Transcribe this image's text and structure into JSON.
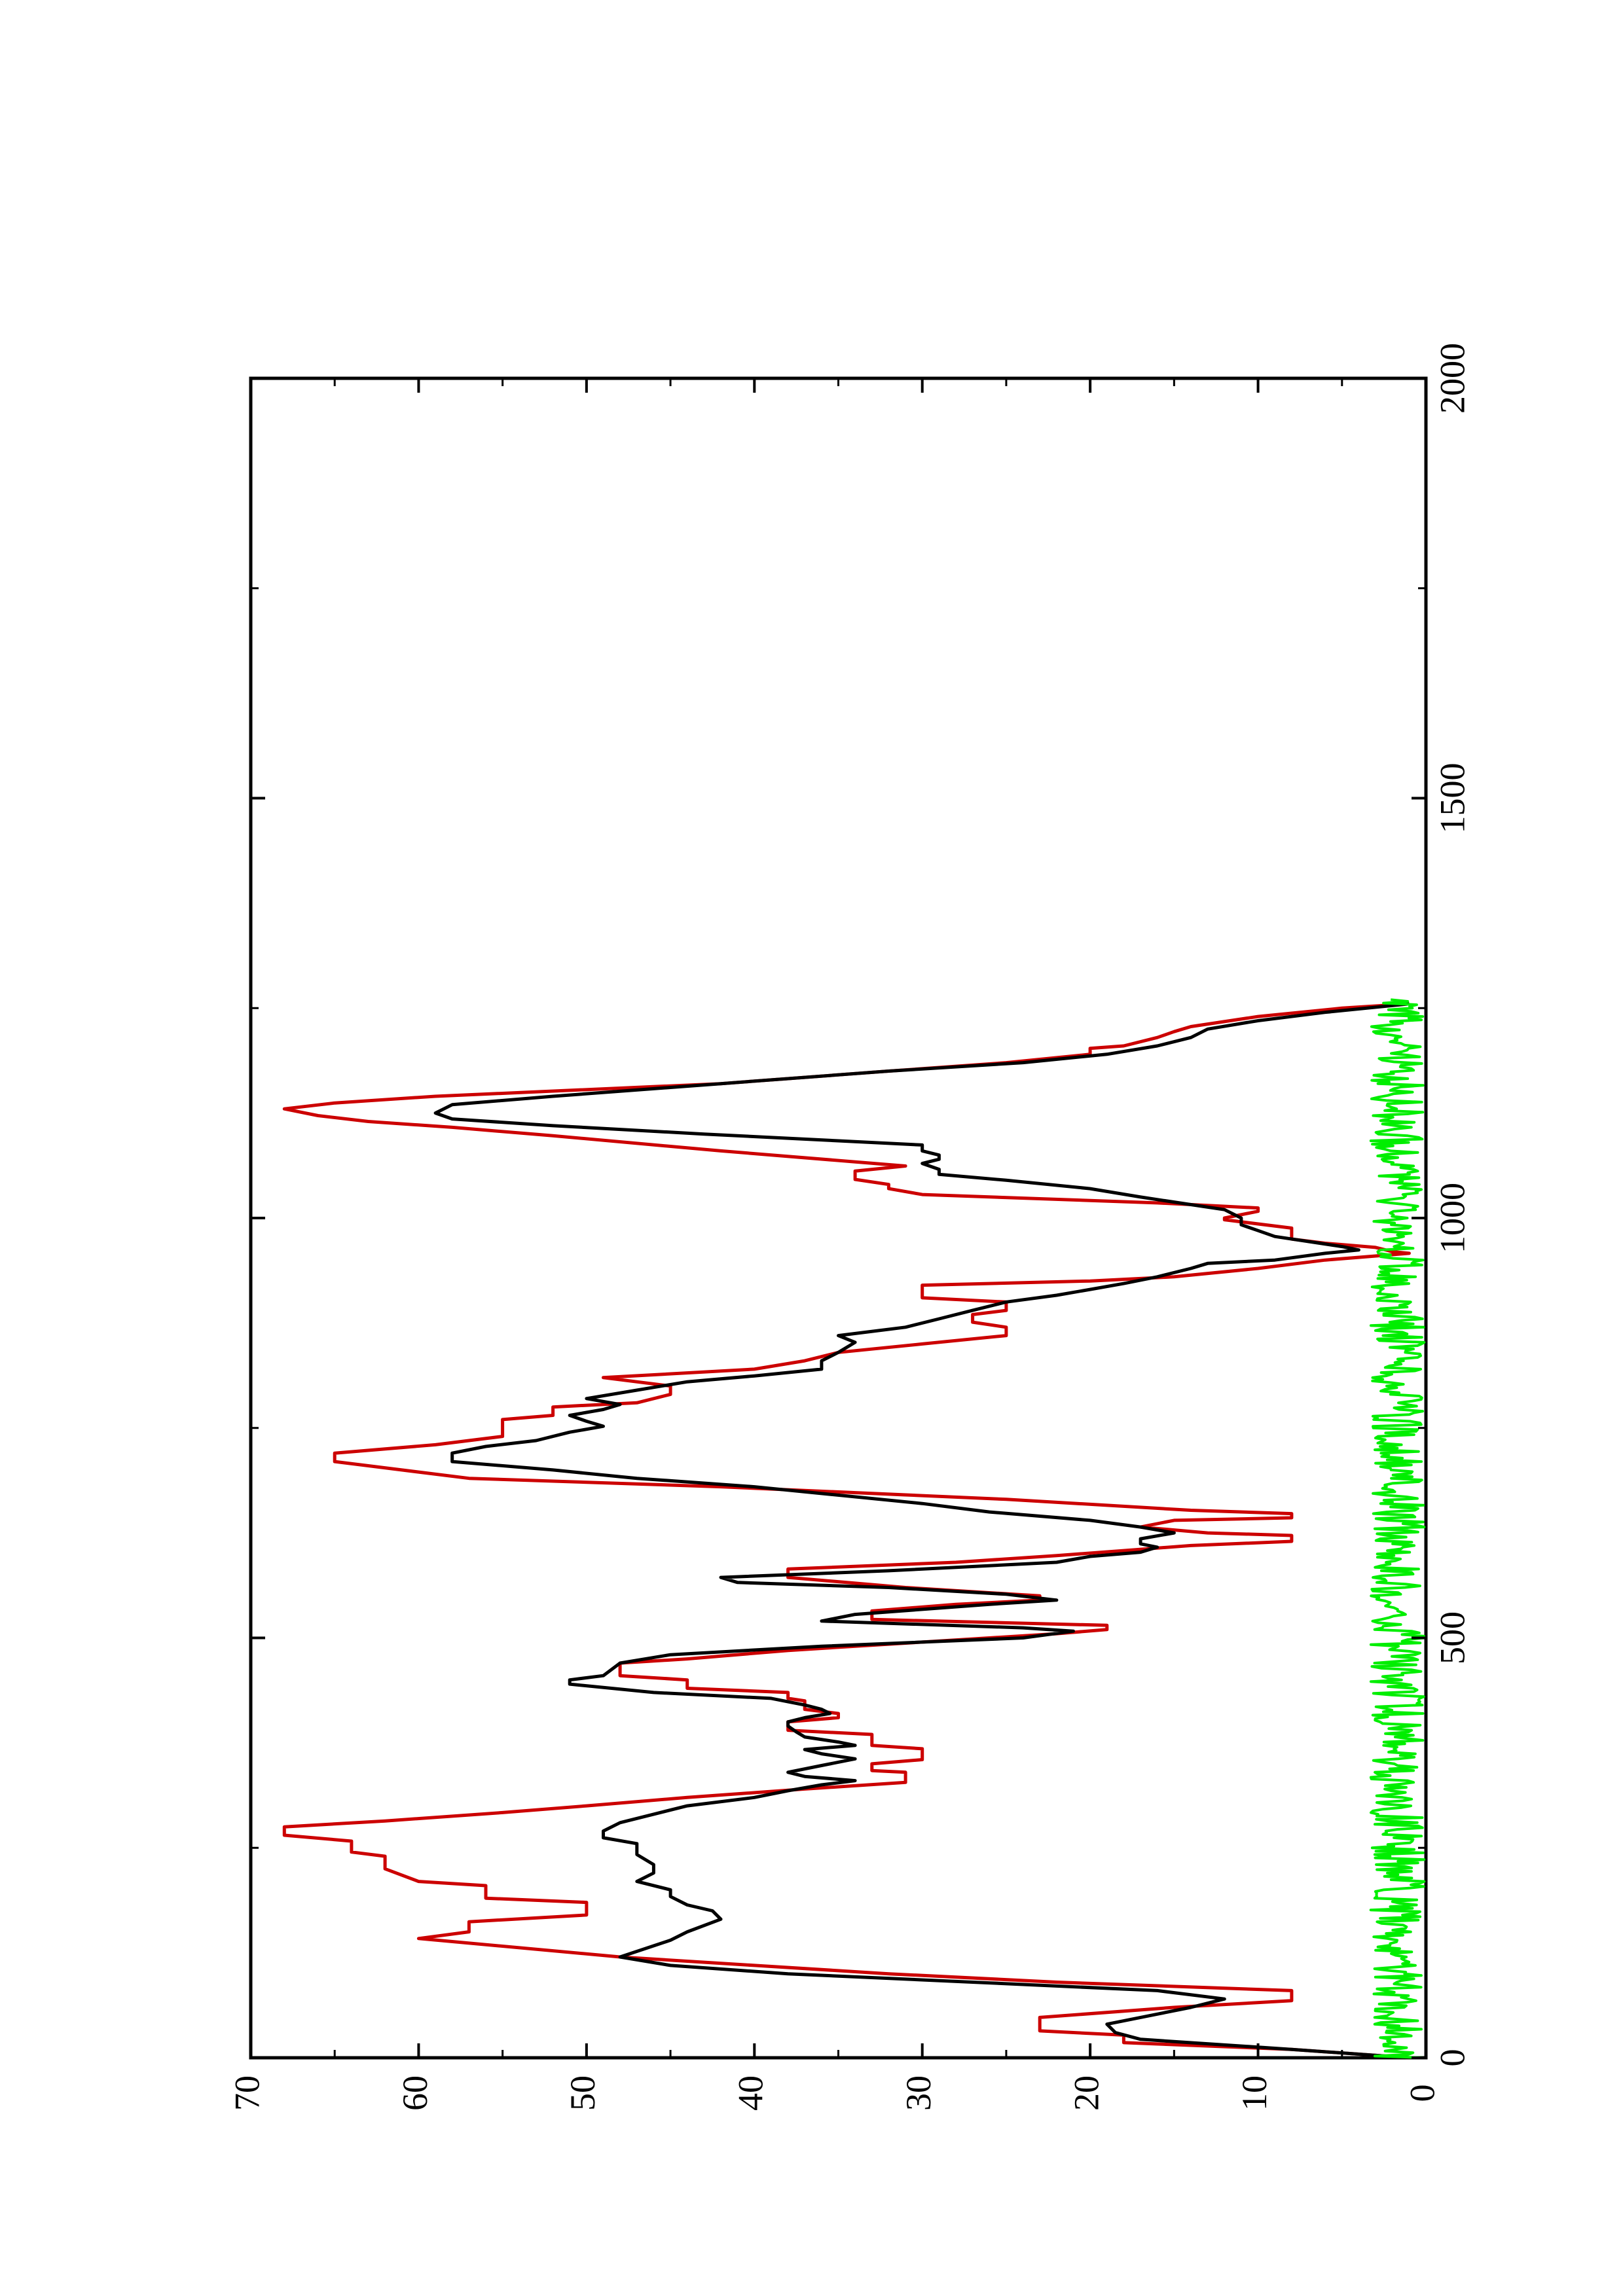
{
  "chart_data": {
    "type": "line",
    "orientation": "rotated-90-ccw",
    "title": "",
    "xlabel": "",
    "ylabel": "",
    "xlim": [
      0,
      2000
    ],
    "ylim": [
      0,
      70
    ],
    "x_ticks": [
      0,
      500,
      1000,
      1500,
      2000
    ],
    "y_ticks": [
      0,
      10,
      20,
      30,
      40,
      50,
      60,
      70
    ],
    "x_tick_labels": [
      "0",
      "500",
      "1000",
      "1500",
      "2000"
    ],
    "y_tick_labels": [
      "0",
      "10",
      "20",
      "30",
      "40",
      "50",
      "60",
      "70"
    ],
    "grid": false,
    "legend": "none",
    "series": [
      {
        "color": "#cc0000",
        "style": "step",
        "points": [
          [
            0,
            1
          ],
          [
            10,
            8
          ],
          [
            18,
            18
          ],
          [
            27,
            18
          ],
          [
            32,
            23
          ],
          [
            48,
            23
          ],
          [
            60,
            15
          ],
          [
            68,
            8
          ],
          [
            80,
            8
          ],
          [
            90,
            22
          ],
          [
            100,
            32
          ],
          [
            110,
            40
          ],
          [
            120,
            48
          ],
          [
            142,
            60
          ],
          [
            150,
            57
          ],
          [
            162,
            57
          ],
          [
            170,
            50
          ],
          [
            185,
            50
          ],
          [
            190,
            56
          ],
          [
            205,
            56
          ],
          [
            210,
            60
          ],
          [
            225,
            62
          ],
          [
            240,
            62
          ],
          [
            245,
            64
          ],
          [
            258,
            64
          ],
          [
            265,
            68
          ],
          [
            275,
            68
          ],
          [
            282,
            62
          ],
          [
            292,
            55
          ],
          [
            300,
            50
          ],
          [
            310,
            44
          ],
          [
            320,
            37
          ],
          [
            328,
            31
          ],
          [
            340,
            31
          ],
          [
            342,
            33
          ],
          [
            350,
            33
          ],
          [
            355,
            30
          ],
          [
            368,
            30
          ],
          [
            372,
            33
          ],
          [
            385,
            33
          ],
          [
            390,
            38
          ],
          [
            400,
            38
          ],
          [
            405,
            35
          ],
          [
            410,
            35
          ],
          [
            415,
            37
          ],
          [
            425,
            37
          ],
          [
            428,
            38
          ],
          [
            435,
            38
          ],
          [
            440,
            44
          ],
          [
            450,
            44
          ],
          [
            455,
            48
          ],
          [
            470,
            48
          ],
          [
            475,
            44
          ],
          [
            485,
            38
          ],
          [
            495,
            30
          ],
          [
            505,
            22
          ],
          [
            510,
            19
          ],
          [
            515,
            19
          ],
          [
            522,
            33
          ],
          [
            532,
            33
          ],
          [
            540,
            28
          ],
          [
            545,
            23
          ],
          [
            550,
            23
          ],
          [
            560,
            31
          ],
          [
            572,
            38
          ],
          [
            582,
            38
          ],
          [
            590,
            28
          ],
          [
            598,
            22
          ],
          [
            604,
            18
          ],
          [
            610,
            14
          ],
          [
            615,
            8
          ],
          [
            622,
            8
          ],
          [
            625,
            13
          ],
          [
            632,
            17
          ],
          [
            640,
            15
          ],
          [
            643,
            8
          ],
          [
            648,
            8
          ],
          [
            652,
            14
          ],
          [
            665,
            25
          ],
          [
            680,
            42
          ],
          [
            690,
            57
          ],
          [
            705,
            63
          ],
          [
            710,
            65
          ],
          [
            720,
            65
          ],
          [
            730,
            59
          ],
          [
            740,
            55
          ],
          [
            760,
            55
          ],
          [
            765,
            52
          ],
          [
            775,
            52
          ],
          [
            780,
            47
          ],
          [
            790,
            45
          ],
          [
            800,
            45
          ],
          [
            810,
            49
          ],
          [
            820,
            40
          ],
          [
            830,
            37
          ],
          [
            840,
            35
          ],
          [
            850,
            30
          ],
          [
            860,
            25
          ],
          [
            870,
            25
          ],
          [
            876,
            27
          ],
          [
            885,
            27
          ],
          [
            890,
            25
          ],
          [
            900,
            25
          ],
          [
            905,
            30
          ],
          [
            920,
            30
          ],
          [
            925,
            20
          ],
          [
            930,
            15
          ],
          [
            940,
            10
          ],
          [
            950,
            6
          ],
          [
            958,
            1
          ],
          [
            960,
            2
          ],
          [
            965,
            3
          ],
          [
            970,
            6
          ],
          [
            975,
            8
          ],
          [
            988,
            8
          ],
          [
            998,
            12
          ],
          [
            1000,
            12
          ],
          [
            1008,
            10
          ],
          [
            1012,
            10
          ],
          [
            1018,
            16
          ],
          [
            1028,
            30
          ],
          [
            1035,
            32
          ],
          [
            1040,
            32
          ],
          [
            1046,
            34
          ],
          [
            1056,
            34
          ],
          [
            1062,
            31
          ],
          [
            1080,
            42
          ],
          [
            1098,
            52
          ],
          [
            1108,
            58
          ],
          [
            1115,
            63
          ],
          [
            1122,
            66
          ],
          [
            1130,
            68
          ],
          [
            1137,
            65
          ],
          [
            1145,
            59
          ],
          [
            1160,
            42
          ],
          [
            1175,
            32
          ],
          [
            1185,
            25
          ],
          [
            1195,
            20
          ],
          [
            1202,
            20
          ],
          [
            1205,
            18
          ],
          [
            1215,
            16
          ],
          [
            1222,
            15
          ],
          [
            1228,
            14
          ],
          [
            1240,
            10
          ],
          [
            1250,
            5
          ],
          [
            1255,
            1
          ]
        ]
      },
      {
        "color": "#000000",
        "style": "line",
        "points": [
          [
            0,
            1
          ],
          [
            10,
            8
          ],
          [
            22,
            17
          ],
          [
            30,
            18.5
          ],
          [
            40,
            19
          ],
          [
            52,
            16
          ],
          [
            60,
            14
          ],
          [
            70,
            12
          ],
          [
            80,
            16
          ],
          [
            90,
            27
          ],
          [
            100,
            38
          ],
          [
            110,
            45
          ],
          [
            120,
            48
          ],
          [
            140,
            45
          ],
          [
            150,
            44
          ],
          [
            165,
            42
          ],
          [
            175,
            42.5
          ],
          [
            182,
            44
          ],
          [
            192,
            45
          ],
          [
            200,
            45
          ],
          [
            210,
            47
          ],
          [
            220,
            46
          ],
          [
            230,
            46
          ],
          [
            242,
            47
          ],
          [
            255,
            47
          ],
          [
            262,
            49
          ],
          [
            270,
            49
          ],
          [
            280,
            48
          ],
          [
            290,
            46
          ],
          [
            300,
            44
          ],
          [
            310,
            40
          ],
          [
            318,
            38
          ],
          [
            325,
            36
          ],
          [
            330,
            34
          ],
          [
            335,
            37
          ],
          [
            340,
            38
          ],
          [
            348,
            36
          ],
          [
            356,
            34
          ],
          [
            362,
            36
          ],
          [
            367,
            37
          ],
          [
            372,
            34
          ],
          [
            376,
            35
          ],
          [
            382,
            37
          ],
          [
            388,
            37.5
          ],
          [
            395,
            38
          ],
          [
            400,
            38
          ],
          [
            405,
            37
          ],
          [
            410,
            35.5
          ],
          [
            415,
            36
          ],
          [
            420,
            37
          ],
          [
            428,
            39
          ],
          [
            435,
            46
          ],
          [
            445,
            51
          ],
          [
            450,
            51
          ],
          [
            455,
            49
          ],
          [
            470,
            48
          ],
          [
            480,
            45
          ],
          [
            490,
            36
          ],
          [
            500,
            24
          ],
          [
            508,
            21
          ],
          [
            512,
            24
          ],
          [
            520,
            36
          ],
          [
            528,
            34
          ],
          [
            540,
            26
          ],
          [
            545,
            22
          ],
          [
            552,
            25
          ],
          [
            560,
            32
          ],
          [
            566,
            41
          ],
          [
            572,
            42
          ],
          [
            580,
            32
          ],
          [
            590,
            22
          ],
          [
            597,
            20
          ],
          [
            602,
            17
          ],
          [
            608,
            16
          ],
          [
            612,
            17
          ],
          [
            618,
            17
          ],
          [
            625,
            15
          ],
          [
            632,
            17
          ],
          [
            640,
            20
          ],
          [
            650,
            26
          ],
          [
            660,
            30
          ],
          [
            670,
            35
          ],
          [
            680,
            40
          ],
          [
            690,
            47
          ],
          [
            700,
            52
          ],
          [
            710,
            58
          ],
          [
            720,
            58
          ],
          [
            728,
            56
          ],
          [
            735,
            53
          ],
          [
            745,
            51
          ],
          [
            752,
            49
          ],
          [
            758,
            50
          ],
          [
            765,
            51
          ],
          [
            772,
            49
          ],
          [
            778,
            48
          ],
          [
            785,
            50
          ],
          [
            795,
            47
          ],
          [
            805,
            44
          ],
          [
            812,
            40
          ],
          [
            820,
            36
          ],
          [
            830,
            36
          ],
          [
            840,
            35
          ],
          [
            852,
            34
          ],
          [
            860,
            35
          ],
          [
            870,
            31
          ],
          [
            880,
            29
          ],
          [
            890,
            27
          ],
          [
            900,
            25
          ],
          [
            908,
            22
          ],
          [
            915,
            20
          ],
          [
            922,
            18
          ],
          [
            930,
            16
          ],
          [
            940,
            14
          ],
          [
            946,
            13
          ],
          [
            950,
            9
          ],
          [
            958,
            6
          ],
          [
            962,
            4
          ],
          [
            966,
            5
          ],
          [
            972,
            7
          ],
          [
            978,
            9
          ],
          [
            985,
            10
          ],
          [
            992,
            11
          ],
          [
            1000,
            11
          ],
          [
            1010,
            12
          ],
          [
            1016,
            14
          ],
          [
            1025,
            17
          ],
          [
            1035,
            20
          ],
          [
            1045,
            25
          ],
          [
            1052,
            29
          ],
          [
            1058,
            29
          ],
          [
            1065,
            30
          ],
          [
            1070,
            29
          ],
          [
            1075,
            29
          ],
          [
            1080,
            30
          ],
          [
            1087,
            30
          ],
          [
            1092,
            35
          ],
          [
            1100,
            43
          ],
          [
            1110,
            52
          ],
          [
            1118,
            58
          ],
          [
            1125,
            59
          ],
          [
            1135,
            58
          ],
          [
            1145,
            52
          ],
          [
            1160,
            42
          ],
          [
            1175,
            32
          ],
          [
            1185,
            24
          ],
          [
            1195,
            19
          ],
          [
            1205,
            16
          ],
          [
            1215,
            14
          ],
          [
            1225,
            13
          ],
          [
            1235,
            10
          ],
          [
            1245,
            6
          ],
          [
            1255,
            1
          ]
        ]
      },
      {
        "color": "#00ee00",
        "style": "noise",
        "x_range": [
          0,
          1260
        ],
        "mean": 1.7,
        "amplitude": 1.6,
        "samples": 630
      }
    ]
  }
}
